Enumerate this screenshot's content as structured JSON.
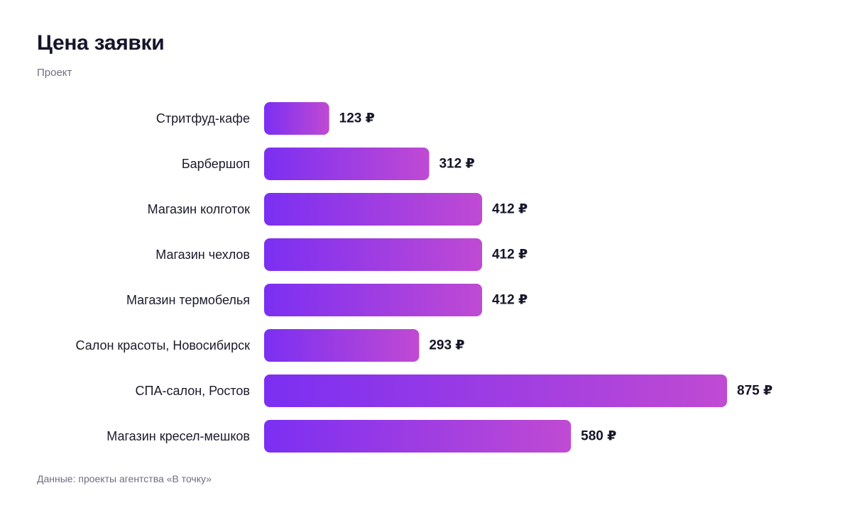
{
  "title": "Цена заявки",
  "subtitle": "Проект",
  "source": "Данные: проекты агентства «В точку»",
  "colors": {
    "bar_start": "#7b2ff2",
    "bar_end": "#c04ad3",
    "text": "#15152a",
    "muted": "#6e6e80"
  },
  "chart_data": {
    "type": "bar",
    "orientation": "horizontal",
    "categories": [
      "Стритфуд-кафе",
      "Барбершоп",
      "Магазин колготок",
      "Магазин чехлов",
      "Магазин термобелья",
      "Салон красоты, Новосибирск",
      "СПА-салон, Ростов",
      "Магазин кресел-мешков"
    ],
    "values": [
      123,
      312,
      412,
      412,
      412,
      293,
      875,
      580
    ],
    "value_suffix": " ₽",
    "xlim": [
      0,
      875
    ],
    "grid": false,
    "legend": "none"
  }
}
